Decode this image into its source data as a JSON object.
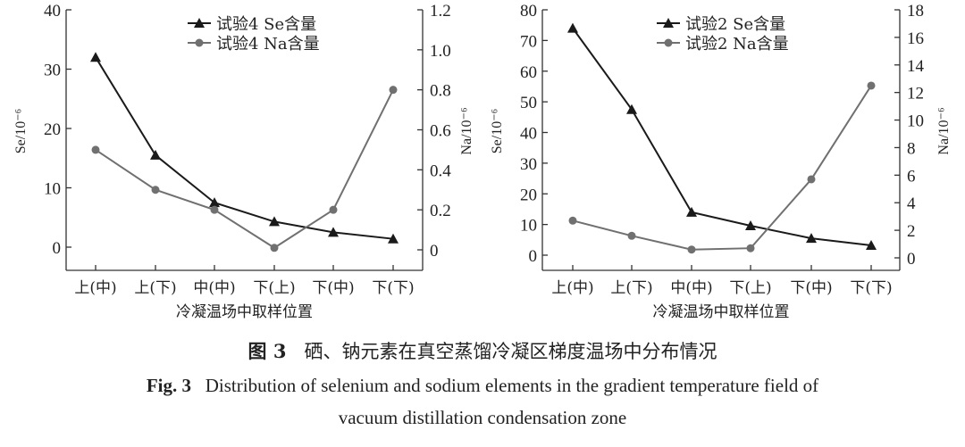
{
  "chart_data": [
    {
      "type": "line",
      "categories": [
        "上(中)",
        "上(下)",
        "中(中)",
        "下(上)",
        "下(中)",
        "下(下)"
      ],
      "xlabel": "冷凝温场中取样位置",
      "ylabel": "Se/10⁻⁶",
      "y2label": "Na/10⁻⁶",
      "ylim": [
        -4,
        40
      ],
      "yticks": [
        0,
        10,
        20,
        30,
        40
      ],
      "y2lim": [
        -0.1,
        1.2
      ],
      "y2ticks": [
        "0",
        "0.2",
        "0.4",
        "0.6",
        "0.8",
        "1.0",
        "1.2"
      ],
      "legend": "top-center",
      "grid": false,
      "series": [
        {
          "name": "试验4 Se含量",
          "axis": "left",
          "marker": "triangle",
          "color": "#1a1a1a",
          "values": [
            32,
            15.5,
            7.5,
            4.3,
            2.5,
            1.4
          ]
        },
        {
          "name": "试验4 Na含量",
          "axis": "right",
          "marker": "circle",
          "color": "#707070",
          "values": [
            0.5,
            0.3,
            0.2,
            0.01,
            0.2,
            0.8
          ]
        }
      ]
    },
    {
      "type": "line",
      "categories": [
        "上(中)",
        "上(下)",
        "中(中)",
        "下(上)",
        "下(中)",
        "下(下)"
      ],
      "xlabel": "冷凝温场中取样位置",
      "ylabel": "Se/10⁻⁶",
      "y2label": "Na/10⁻⁶",
      "ylim": [
        -5,
        80
      ],
      "yticks": [
        0,
        10,
        20,
        30,
        40,
        50,
        60,
        70,
        80
      ],
      "y2lim": [
        -1,
        18
      ],
      "y2ticks": [
        "0",
        "2",
        "4",
        "6",
        "8",
        "10",
        "12",
        "14",
        "16",
        "18"
      ],
      "legend": "top-center",
      "grid": false,
      "series": [
        {
          "name": "试验2 Se含量",
          "axis": "left",
          "marker": "triangle",
          "color": "#1a1a1a",
          "values": [
            74,
            47.5,
            14,
            9.6,
            5.5,
            3.2
          ]
        },
        {
          "name": "试验2 Na含量",
          "axis": "right",
          "marker": "circle",
          "color": "#707070",
          "values": [
            2.7,
            1.6,
            0.6,
            0.7,
            5.7,
            12.5
          ]
        }
      ]
    }
  ],
  "caption": {
    "cn_label": "图 3",
    "cn_text": "硒、钠元素在真空蒸馏冷凝区梯度温场中分布情况",
    "en_label": "Fig. 3",
    "en_text_line1": "Distribution of selenium and sodium elements in the gradient temperature field of",
    "en_text_line2": "vacuum distillation condensation zone"
  }
}
